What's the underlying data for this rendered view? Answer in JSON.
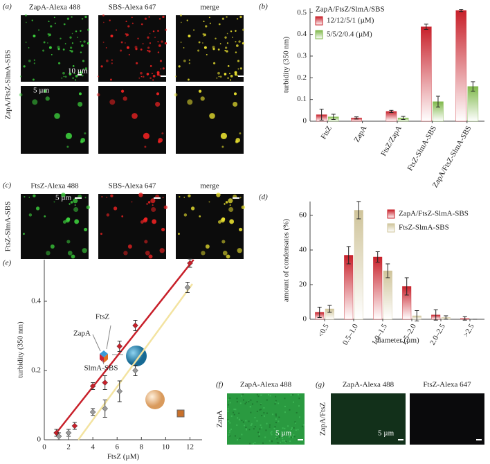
{
  "panels": {
    "a": {
      "label": "(a)",
      "columns": [
        "ZapA-Alexa 488",
        "SBS-Alexa 647",
        "merge"
      ],
      "row_label": "ZapA/FtsZ-SlmA-SBS",
      "scale_bars": [
        "10 µm",
        "5 µm"
      ]
    },
    "c": {
      "label": "(c)",
      "columns": [
        "FtsZ-Alexa 488",
        "SBS-Alexa 647",
        "merge"
      ],
      "row_label": "FtsZ-SlmA-SBS",
      "scale_bar": "5 µm"
    },
    "f": {
      "label": "(f)",
      "column": "ZapA-Alexa 488",
      "row_label": "ZapA",
      "scale_bar": "5 µm"
    },
    "g": {
      "label": "(g)",
      "columns": [
        "ZapA-Alexa 488",
        "FtsZ-Alexa 647"
      ],
      "row_label": "ZapA/FtsZ",
      "scale_bar": "5 µm"
    }
  },
  "chart_data": [
    {
      "type": "bar",
      "panel_label": "(b)",
      "title": "ZapA/FtsZ/SlmA/SBS",
      "y_label": "turbidity (350 nm)",
      "categories": [
        "FtsZ",
        "ZapA",
        "FtsZ/ZapA",
        "FtsZ-SlmA-SBS",
        "ZapA/FtsZ-SlmA-SBS"
      ],
      "series": [
        {
          "name": "12/12/5/1 (µM)",
          "color": "#c8202a",
          "values": [
            0.03,
            0.015,
            0.045,
            0.435,
            0.51
          ],
          "errors": [
            0.025,
            0.005,
            0.005,
            0.012,
            0.005
          ]
        },
        {
          "name": "5/5/2/0.4 (µM)",
          "color": "#7fb84a",
          "values": [
            0.02,
            null,
            0.015,
            0.09,
            0.16
          ],
          "errors": [
            0.012,
            null,
            0.007,
            0.025,
            0.022
          ]
        }
      ],
      "ylim": [
        0,
        0.52
      ],
      "yticks": [
        0,
        0.1,
        0.2,
        0.3,
        0.4,
        0.5
      ],
      "legend": "upper left"
    },
    {
      "type": "bar",
      "panel_label": "(d)",
      "x_label": "diameter (µm)",
      "y_label": "amount of condensates (%)",
      "categories": [
        "<0.5",
        "0.5–1.0",
        "1.0–1.5",
        "1.5–2.0",
        "2.0–2.5",
        ">2.5"
      ],
      "series": [
        {
          "name": "ZapA/FtsZ-SlmA-SBS",
          "color": "#c8202a",
          "values": [
            4,
            37,
            36,
            19,
            2.5,
            0.5
          ],
          "errors": [
            3,
            5,
            3,
            5,
            3,
            1
          ]
        },
        {
          "name": "FtsZ-SlmA-SBS",
          "color": "#cfc49a",
          "values": [
            6,
            63,
            28,
            2,
            1,
            0
          ],
          "errors": [
            2,
            5,
            4,
            3,
            1,
            0
          ]
        }
      ],
      "ylim": [
        0,
        68
      ],
      "yticks": [
        0,
        20,
        40,
        60
      ],
      "legend": "upper right"
    },
    {
      "type": "scatter",
      "panel_label": "(e)",
      "x_label": "FtsZ (µM)",
      "y_label": "turbidity (350 nm)",
      "annotations": [
        "FtsZ",
        "ZapA",
        "SlmA-SBS"
      ],
      "series": [
        {
          "color": "#c8202a",
          "x": [
            1,
            2.5,
            4,
            5,
            6.2,
            7.5,
            12
          ],
          "values": [
            0.02,
            0.04,
            0.155,
            0.165,
            0.27,
            0.33,
            0.51
          ],
          "errors": [
            0.01,
            0.01,
            0.01,
            0.02,
            0.015,
            0.015,
            0.012
          ]
        },
        {
          "color": "#9a9a9a",
          "x": [
            1.2,
            2,
            4,
            5,
            6.2,
            7.5,
            11.8
          ],
          "values": [
            0.01,
            0.02,
            0.08,
            0.09,
            0.14,
            0.2,
            0.44
          ],
          "errors": [
            0.01,
            0.01,
            0.01,
            0.025,
            0.03,
            0.015,
            0.015
          ]
        }
      ],
      "fits": [
        {
          "color": "#c8202a",
          "x": [
            1,
            12.3
          ],
          "values": [
            0.02,
            0.52
          ]
        },
        {
          "color": "#f3e3a0",
          "x": [
            2.8,
            12.2
          ],
          "values": [
            0,
            0.45
          ]
        }
      ],
      "xlim": [
        0,
        13
      ],
      "xticks": [
        0,
        2,
        4,
        6,
        8,
        10,
        12
      ],
      "ylim": [
        0,
        0.52
      ],
      "yticks": [
        0,
        0.2,
        0.4
      ]
    }
  ]
}
